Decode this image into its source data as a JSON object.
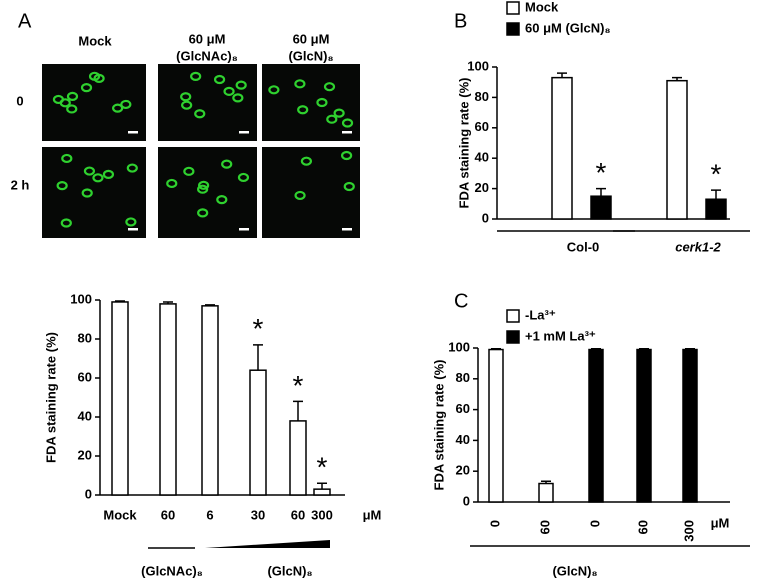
{
  "panel_labels": [
    "A",
    "B",
    "C"
  ],
  "micrographs": {
    "columns": [
      [
        "Mock"
      ],
      [
        "60 μM",
        "(GlcNAc)₈"
      ],
      [
        "60 μM",
        "(GlcN)₈"
      ]
    ],
    "rows": [
      "0",
      "2 h"
    ]
  },
  "chart_data": [
    {
      "type": "bar",
      "ylabel": "FDA staining rate (%)",
      "categories": [
        "Mock",
        "60",
        "6",
        "30",
        "60",
        "300"
      ],
      "x_unit": "μM",
      "series": [
        {
          "color": "#ffffff",
          "values": [
            99,
            98,
            97,
            64,
            38,
            3
          ],
          "errors": [
            0.5,
            1,
            0.5,
            13,
            10,
            3
          ]
        }
      ],
      "significant": [
        false,
        false,
        false,
        true,
        true,
        true
      ],
      "significance_marker": "*",
      "groups": [
        "(GlcNAc)₈",
        "(GlcN)₈"
      ],
      "ylim": [
        0,
        100
      ],
      "yticks": [
        0,
        20,
        40,
        60,
        80,
        100
      ]
    },
    {
      "type": "bar",
      "ylabel": "FDA staining rate (%)",
      "categories": [
        "Col-0",
        "cerk1-2"
      ],
      "series": [
        {
          "name": "Mock",
          "color": "#ffffff",
          "values": [
            93,
            91
          ],
          "errors": [
            3,
            2
          ]
        },
        {
          "name": "60 μM (GlcN)₈",
          "color": "#000000",
          "values": [
            15,
            13
          ],
          "errors": [
            5,
            6
          ],
          "significant": [
            true,
            true
          ]
        }
      ],
      "significance_marker": "*",
      "legend": "top",
      "ylim": [
        0,
        100
      ],
      "yticks": [
        0,
        20,
        40,
        60,
        80,
        100
      ]
    },
    {
      "type": "bar",
      "ylabel": "FDA staining rate (%)",
      "categories": [
        "0",
        "60",
        "0",
        "60",
        "300"
      ],
      "x_unit": "μM",
      "series": [
        {
          "name": "-La³⁺",
          "color": "#ffffff",
          "values": [
            99,
            12,
            null,
            null,
            null
          ],
          "errors": [
            0.5,
            1.5,
            null,
            null,
            null
          ]
        },
        {
          "name": "+1 mM La³⁺",
          "color": "#000000",
          "values": [
            null,
            null,
            99,
            99,
            99
          ],
          "errors": [
            null,
            null,
            0.5,
            0.5,
            0.5
          ]
        }
      ],
      "groups": [
        "(GlcN)₈"
      ],
      "legend": "top",
      "ylim": [
        0,
        100
      ],
      "yticks": [
        0,
        20,
        40,
        60,
        80,
        100
      ]
    }
  ]
}
